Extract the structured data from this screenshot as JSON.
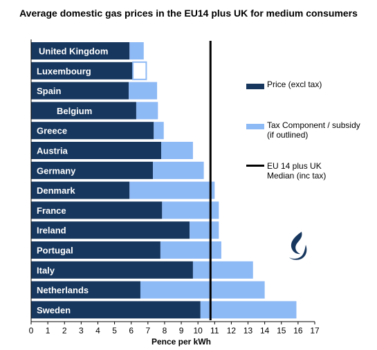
{
  "chart_data": {
    "type": "bar",
    "orientation": "horizontal",
    "stacked": true,
    "title": "Average domestic gas prices in the EU14 plus UK for medium consumers",
    "xlabel": "Pence per kWh",
    "xlim": [
      0,
      17
    ],
    "xticks": [
      0,
      1,
      2,
      3,
      4,
      5,
      6,
      7,
      8,
      9,
      10,
      11,
      12,
      13,
      14,
      15,
      16,
      17
    ],
    "categories": [
      "United Kingdom",
      "Luxembourg",
      "Spain",
      "Belgium",
      "Greece",
      "Austria",
      "Germany",
      "Denmark",
      "France",
      "Ireland",
      "Portugal",
      "Italy",
      "Netherlands",
      "Sweden"
    ],
    "series": [
      {
        "name": "Price (excl tax)",
        "color": "#17375e",
        "values": [
          5.9,
          6.1,
          5.85,
          6.3,
          7.35,
          7.8,
          7.3,
          5.9,
          7.85,
          9.5,
          7.75,
          9.7,
          6.55,
          10.15
        ]
      },
      {
        "name": "Tax Component / subsidy (if outlined)",
        "color": "#8db9f5",
        "values": [
          0.85,
          0.8,
          1.7,
          1.3,
          0.6,
          1.9,
          3.05,
          5.1,
          3.4,
          1.75,
          3.65,
          3.6,
          7.45,
          5.75
        ],
        "outlined": [
          false,
          true,
          false,
          false,
          false,
          false,
          false,
          false,
          false,
          false,
          false,
          false,
          false,
          false
        ]
      }
    ],
    "median": {
      "name": "EU 14 plus UK Median (inc tax)",
      "value": 10.75
    },
    "legend_position": "right",
    "grid": false
  },
  "legend": {
    "price": "Price (excl tax)",
    "tax": "Tax Component / subsidy (if outlined)",
    "median": "EU 14 plus UK Median (inc tax)"
  },
  "logo": {
    "icon": "flame-icon",
    "color": "#17375e"
  }
}
